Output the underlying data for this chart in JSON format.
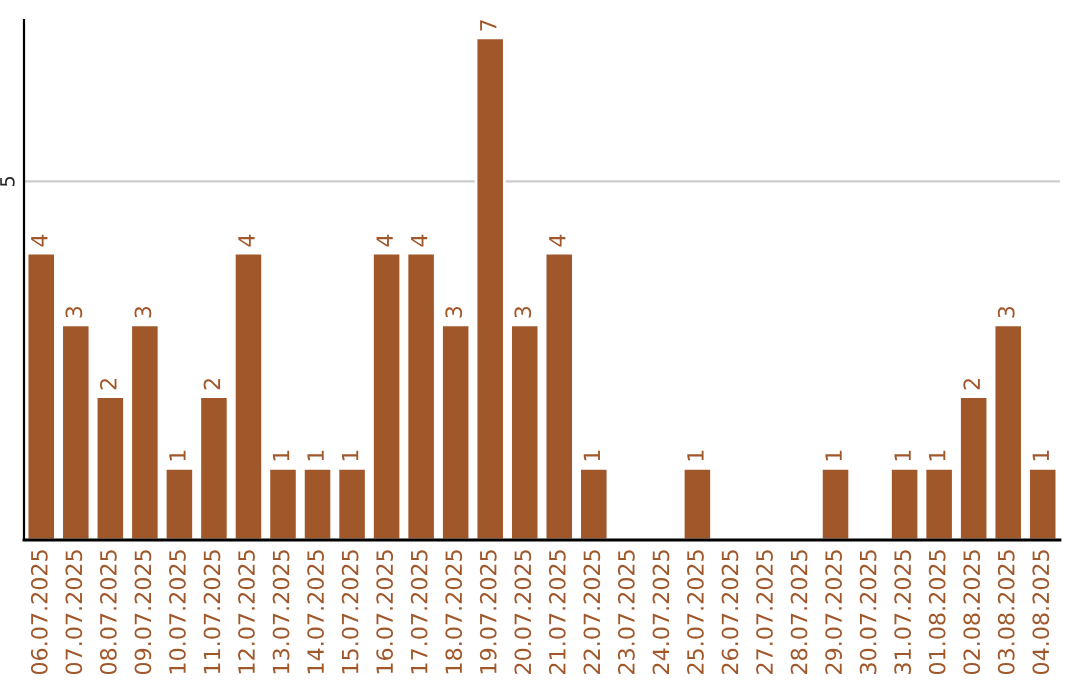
{
  "chart_data": {
    "type": "bar",
    "categories": [
      "06.07.2025",
      "07.07.2025",
      "08.07.2025",
      "09.07.2025",
      "10.07.2025",
      "11.07.2025",
      "12.07.2025",
      "13.07.2025",
      "14.07.2025",
      "15.07.2025",
      "16.07.2025",
      "17.07.2025",
      "18.07.2025",
      "19.07.2025",
      "20.07.2025",
      "21.07.2025",
      "22.07.2025",
      "23.07.2025",
      "24.07.2025",
      "25.07.2025",
      "26.07.2025",
      "27.07.2025",
      "28.07.2025",
      "29.07.2025",
      "30.07.2025",
      "31.07.2025",
      "01.08.2025",
      "02.08.2025",
      "03.08.2025",
      "04.08.2025"
    ],
    "values": [
      4,
      3,
      2,
      3,
      1,
      2,
      4,
      1,
      1,
      1,
      4,
      4,
      3,
      7,
      3,
      4,
      1,
      null,
      null,
      1,
      null,
      null,
      null,
      1,
      null,
      1,
      1,
      2,
      3,
      1
    ],
    "value_labels": [
      "4",
      "3",
      "2",
      "3",
      "1",
      "2",
      "4",
      "1",
      "1",
      "1",
      "4",
      "4",
      "3",
      "7",
      "3",
      "4",
      "1",
      null,
      null,
      "1",
      null,
      null,
      null,
      "1",
      null,
      "1",
      "1",
      "2",
      "3",
      "1"
    ],
    "color": "#a0572a",
    "ylim": [
      0,
      7.25
    ],
    "yticks": [
      5
    ],
    "grid": "y"
  }
}
